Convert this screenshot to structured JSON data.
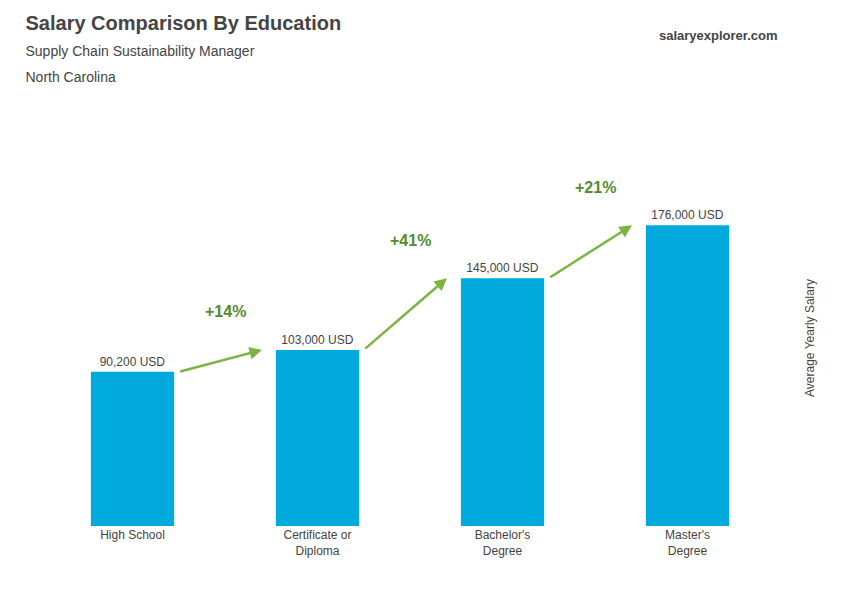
{
  "chart_data": {
    "type": "bar",
    "title": "Salary Comparison By Education",
    "subtitle": [
      "Supply Chain Sustainability Manager",
      "North Carolina"
    ],
    "ylabel": "Average Yearly Salary",
    "categories": [
      "High School",
      "Certificate or\nDiploma",
      "Bachelor's\nDegree",
      "Master's\nDegree"
    ],
    "values": [
      90200,
      103000,
      145000,
      176000
    ],
    "value_labels": [
      "90,200 USD",
      "103,000 USD",
      "145,000 USD",
      "176,000 USD"
    ],
    "data_labels": true,
    "color": "#00aadd",
    "ylim": [
      0,
      220000
    ],
    "tick_labels": "x",
    "grid": false,
    "annotations": [
      {
        "text": "+14%",
        "from": "High School",
        "to": "Certificate or\nDiploma"
      },
      {
        "text": "+41%",
        "from": "Certificate or\nDiploma",
        "to": "Bachelor's\nDegree"
      },
      {
        "text": "+21%",
        "from": "Bachelor's\nDegree",
        "to": "Master's\nDegree"
      },
      {
        "text": "salaryexplorer.com"
      }
    ]
  }
}
